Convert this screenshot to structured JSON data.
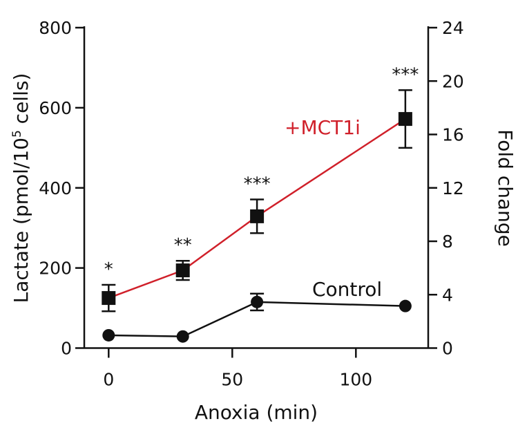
{
  "chart_data": {
    "type": "line",
    "xlabel": "Anoxia (min)",
    "ylabel": "Lactate (pmol/10⁵ cells)",
    "ylabel_parts": [
      "Lactate (pmol/10",
      "5",
      " cells)"
    ],
    "y2label": "Fold change",
    "xlim": [
      -5,
      125
    ],
    "ylim": [
      0,
      800
    ],
    "y2lim": [
      0,
      24
    ],
    "x_ticks": [
      0,
      50,
      100
    ],
    "y_ticks": [
      0,
      200,
      400,
      600,
      800
    ],
    "y2_ticks": [
      0,
      4,
      8,
      12,
      16,
      20,
      24
    ],
    "grid": false,
    "series": [
      {
        "name": "+MCT1i",
        "color": "#d0202a",
        "marker": "square",
        "x": [
          0,
          30,
          60,
          120
        ],
        "y": [
          125,
          194,
          329,
          572
        ],
        "error": [
          33,
          24,
          42,
          72
        ],
        "significance": [
          "*",
          "**",
          "***",
          "***"
        ]
      },
      {
        "name": "Control",
        "color": "#111111",
        "marker": "circle",
        "x": [
          0,
          30,
          60,
          120
        ],
        "y": [
          32,
          29,
          115,
          105
        ],
        "error": [
          0,
          0,
          21,
          0
        ]
      }
    ]
  }
}
